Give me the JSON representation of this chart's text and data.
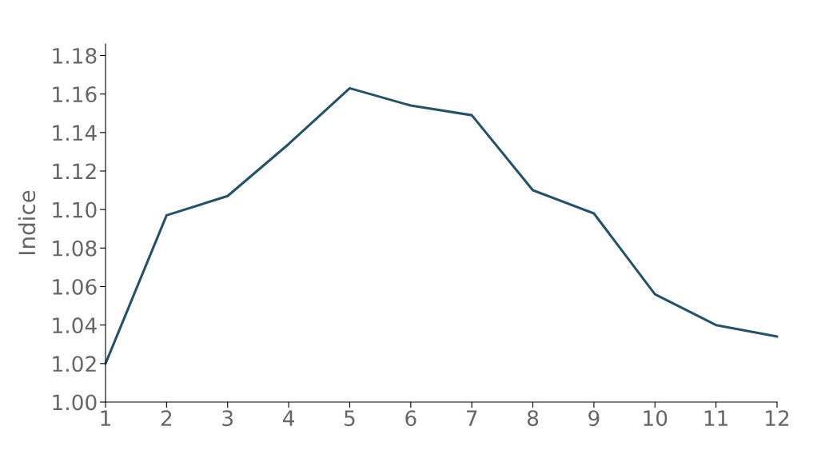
{
  "chart_data": {
    "type": "line",
    "ylabel": "Indice",
    "x": [
      1,
      2,
      3,
      4,
      5,
      6,
      7,
      8,
      9,
      10,
      11,
      12
    ],
    "series": [
      {
        "color": "#245369",
        "values": [
          1.02,
          1.097,
          1.107,
          1.134,
          1.163,
          1.154,
          1.149,
          1.11,
          1.098,
          1.056,
          1.04,
          1.034
        ]
      }
    ],
    "xlim": [
      1,
      12
    ],
    "xticks": [
      1,
      2,
      3,
      4,
      5,
      6,
      7,
      8,
      9,
      10,
      11,
      12
    ],
    "ylim": [
      1.0,
      1.186
    ],
    "yticks": [
      {
        "value": 1.0,
        "label": "1.00"
      },
      {
        "value": 1.02,
        "label": "1.02"
      },
      {
        "value": 1.04,
        "label": "1.04"
      },
      {
        "value": 1.06,
        "label": "1.06"
      },
      {
        "value": 1.08,
        "label": "1.08"
      },
      {
        "value": 1.1,
        "label": "1.10"
      },
      {
        "value": 1.12,
        "label": "1.12"
      },
      {
        "value": 1.14,
        "label": "1.14"
      },
      {
        "value": 1.16,
        "label": "1.16"
      },
      {
        "value": 1.18,
        "label": "1.18"
      }
    ],
    "grid": false,
    "legend": false
  }
}
